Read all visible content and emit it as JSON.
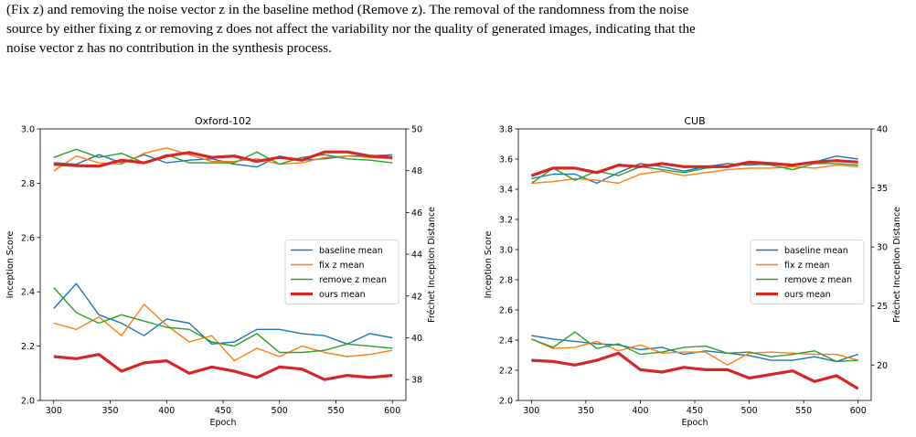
{
  "caption": {
    "line1": "(Fix z) and removing the noise vector z in the baseline method (Remove z). The removal of the randomness from the noise",
    "line2": "source by either fixing z or removing z does not affect the variability nor the quality of generated images, indicating that the",
    "line3": "noise vector z has no contribution in the synthesis process."
  },
  "chart_data": [
    {
      "type": "line",
      "title": "Oxford-102",
      "xlabel": "Epoch",
      "ylabel_left": "Inception Score",
      "ylabel_right": "Fréchet Inception Distance",
      "xlim": [
        288,
        612
      ],
      "ylim_left": [
        2.0,
        3.0
      ],
      "ylim_right": [
        37.0,
        50.0
      ],
      "x_ticks": [
        300,
        350,
        400,
        450,
        500,
        550,
        600
      ],
      "y_ticks_left": [
        "2.0",
        "2.2",
        "2.4",
        "2.6",
        "2.8",
        "3.0"
      ],
      "y_ticks_right": [
        "38",
        "40",
        "42",
        "44",
        "46",
        "48",
        "50"
      ],
      "x": [
        300,
        320,
        340,
        360,
        380,
        400,
        420,
        440,
        460,
        480,
        500,
        520,
        540,
        560,
        580,
        600
      ],
      "legend": [
        "baseline mean",
        "fix z mean",
        "remove z mean",
        "ours mean"
      ],
      "legend_position": "center-right",
      "is_series": [
        {
          "name": "baseline mean",
          "color": "#1f77b4",
          "values": [
            2.875,
            2.87,
            2.905,
            2.875,
            2.905,
            2.875,
            2.885,
            2.89,
            2.87,
            2.86,
            2.9,
            2.885,
            2.89,
            2.9,
            2.9,
            2.905
          ]
        },
        {
          "name": "fix z mean",
          "color": "#ff7f0e",
          "values": [
            2.845,
            2.9,
            2.875,
            2.87,
            2.91,
            2.93,
            2.905,
            2.88,
            2.88,
            2.89,
            2.87,
            2.875,
            2.895,
            2.9,
            2.895,
            2.89
          ]
        },
        {
          "name": "remove z mean",
          "color": "#2ca02c",
          "values": [
            2.895,
            2.925,
            2.895,
            2.91,
            2.875,
            2.905,
            2.875,
            2.875,
            2.875,
            2.915,
            2.87,
            2.895,
            2.905,
            2.89,
            2.885,
            2.875
          ]
        },
        {
          "name": "ours mean",
          "color": "#d62728",
          "values": [
            2.87,
            2.865,
            2.863,
            2.885,
            2.875,
            2.9,
            2.913,
            2.895,
            2.9,
            2.88,
            2.895,
            2.885,
            2.915,
            2.915,
            2.9,
            2.895
          ]
        }
      ],
      "fid_series": [
        {
          "name": "baseline mean",
          "color": "#1f77b4",
          "values": [
            41.4,
            42.6,
            41.1,
            40.7,
            40.1,
            40.9,
            40.7,
            39.7,
            39.8,
            40.4,
            40.4,
            40.2,
            40.1,
            39.7,
            40.2,
            40.0
          ]
        },
        {
          "name": "fix z mean",
          "color": "#ff7f0e",
          "values": [
            40.7,
            40.4,
            41.0,
            40.1,
            41.6,
            40.6,
            39.8,
            40.1,
            38.9,
            39.5,
            39.1,
            39.6,
            39.3,
            39.1,
            39.2,
            39.4
          ]
        },
        {
          "name": "remove z mean",
          "color": "#2ca02c",
          "values": [
            42.4,
            41.2,
            40.7,
            41.1,
            40.8,
            40.5,
            40.4,
            39.8,
            39.6,
            40.2,
            39.3,
            39.3,
            39.4,
            39.7,
            39.6,
            39.5
          ]
        },
        {
          "name": "ours mean",
          "color": "#d62728",
          "values": [
            39.1,
            39.0,
            39.2,
            38.4,
            38.8,
            38.9,
            38.3,
            38.6,
            38.4,
            38.1,
            38.6,
            38.5,
            38.0,
            38.2,
            38.1,
            38.2
          ]
        }
      ]
    },
    {
      "type": "line",
      "title": "CUB",
      "xlabel": "Epoch",
      "ylabel_left": "Inception Score",
      "ylabel_right": "Fréchet Inception Distance",
      "xlim": [
        288,
        612
      ],
      "ylim_left": [
        2.0,
        3.8
      ],
      "ylim_right": [
        17.0,
        40.0
      ],
      "x_ticks": [
        300,
        350,
        400,
        450,
        500,
        550,
        600
      ],
      "y_ticks_left": [
        "2.0",
        "2.2",
        "2.4",
        "2.6",
        "2.8",
        "3.0",
        "3.2",
        "3.4",
        "3.6",
        "3.8"
      ],
      "y_ticks_right": [
        "20",
        "25",
        "30",
        "35",
        "40"
      ],
      "x": [
        300,
        320,
        340,
        360,
        380,
        400,
        420,
        440,
        460,
        480,
        500,
        520,
        540,
        560,
        580,
        600
      ],
      "legend": [
        "baseline mean",
        "fix z mean",
        "remove z mean",
        "ours mean"
      ],
      "legend_position": "center-right",
      "is_series": [
        {
          "name": "baseline mean",
          "color": "#1f77b4",
          "values": [
            3.47,
            3.5,
            3.5,
            3.44,
            3.51,
            3.57,
            3.55,
            3.52,
            3.55,
            3.57,
            3.56,
            3.57,
            3.56,
            3.58,
            3.62,
            3.6
          ]
        },
        {
          "name": "fix z mean",
          "color": "#ff7f0e",
          "values": [
            3.44,
            3.45,
            3.47,
            3.46,
            3.44,
            3.5,
            3.52,
            3.49,
            3.51,
            3.53,
            3.54,
            3.54,
            3.55,
            3.54,
            3.56,
            3.55
          ]
        },
        {
          "name": "remove z mean",
          "color": "#2ca02c",
          "values": [
            3.44,
            3.54,
            3.46,
            3.52,
            3.49,
            3.55,
            3.53,
            3.51,
            3.54,
            3.55,
            3.57,
            3.56,
            3.53,
            3.57,
            3.57,
            3.56
          ]
        },
        {
          "name": "ours mean",
          "color": "#d62728",
          "values": [
            3.49,
            3.54,
            3.54,
            3.51,
            3.56,
            3.55,
            3.57,
            3.55,
            3.55,
            3.55,
            3.58,
            3.57,
            3.56,
            3.58,
            3.59,
            3.58
          ]
        }
      ],
      "fid_series": [
        {
          "name": "baseline mean",
          "color": "#1f77b4",
          "values": [
            22.5,
            22.2,
            22.0,
            21.8,
            21.7,
            21.3,
            21.5,
            20.9,
            21.2,
            21.0,
            20.8,
            20.4,
            20.4,
            20.7,
            20.3,
            20.9
          ]
        },
        {
          "name": "fix z mean",
          "color": "#ff7f0e",
          "values": [
            22.2,
            21.4,
            21.5,
            22.0,
            21.2,
            21.7,
            21.0,
            21.1,
            21.1,
            20.0,
            21.0,
            21.1,
            21.0,
            20.9,
            20.9,
            20.4
          ]
        },
        {
          "name": "remove z mean",
          "color": "#2ca02c",
          "values": [
            22.2,
            21.5,
            22.8,
            21.4,
            21.8,
            20.9,
            21.1,
            21.5,
            21.6,
            21.0,
            21.1,
            20.7,
            20.9,
            21.2,
            20.3,
            20.4
          ]
        },
        {
          "name": "ours mean",
          "color": "#d62728",
          "values": [
            20.4,
            20.3,
            20.0,
            20.4,
            21.0,
            19.6,
            19.4,
            19.8,
            19.6,
            19.6,
            18.9,
            19.2,
            19.5,
            18.6,
            19.1,
            18.0
          ]
        }
      ]
    }
  ]
}
